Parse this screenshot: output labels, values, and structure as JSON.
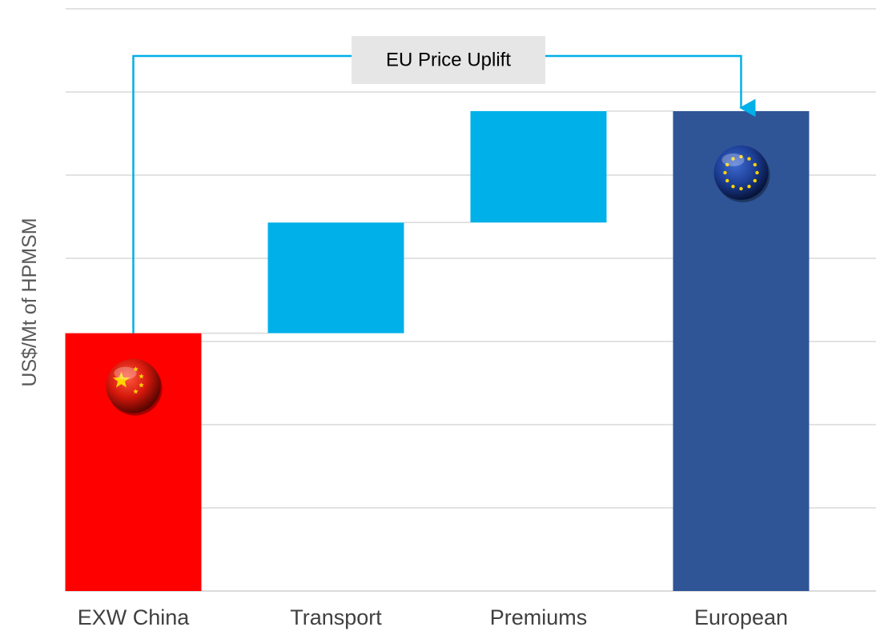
{
  "chart_data": {
    "type": "bar",
    "subtype": "waterfall",
    "title": "",
    "xlabel": "",
    "ylabel": "US$/Mt of HPMSM",
    "ylim": [
      0,
      7
    ],
    "grid": true,
    "categories": [
      "EXW China",
      "Transport",
      "Premiums",
      "European"
    ],
    "bars": [
      {
        "category": "EXW China",
        "kind": "total",
        "start": 0,
        "end": 3.1,
        "color": "#ff0000",
        "icon": "china-flag-icon"
      },
      {
        "category": "Transport",
        "kind": "increase",
        "start": 3.1,
        "end": 4.43,
        "color": "#00b0e8"
      },
      {
        "category": "Premiums",
        "kind": "increase",
        "start": 4.43,
        "end": 5.77,
        "color": "#00b0e8"
      },
      {
        "category": "European",
        "kind": "total",
        "start": 0,
        "end": 5.77,
        "color": "#2f5597",
        "icon": "eu-flag-icon"
      }
    ],
    "annotation": {
      "text": "EU Price Uplift",
      "from": "EXW China",
      "to": "European",
      "color": "#00b0e8"
    }
  }
}
